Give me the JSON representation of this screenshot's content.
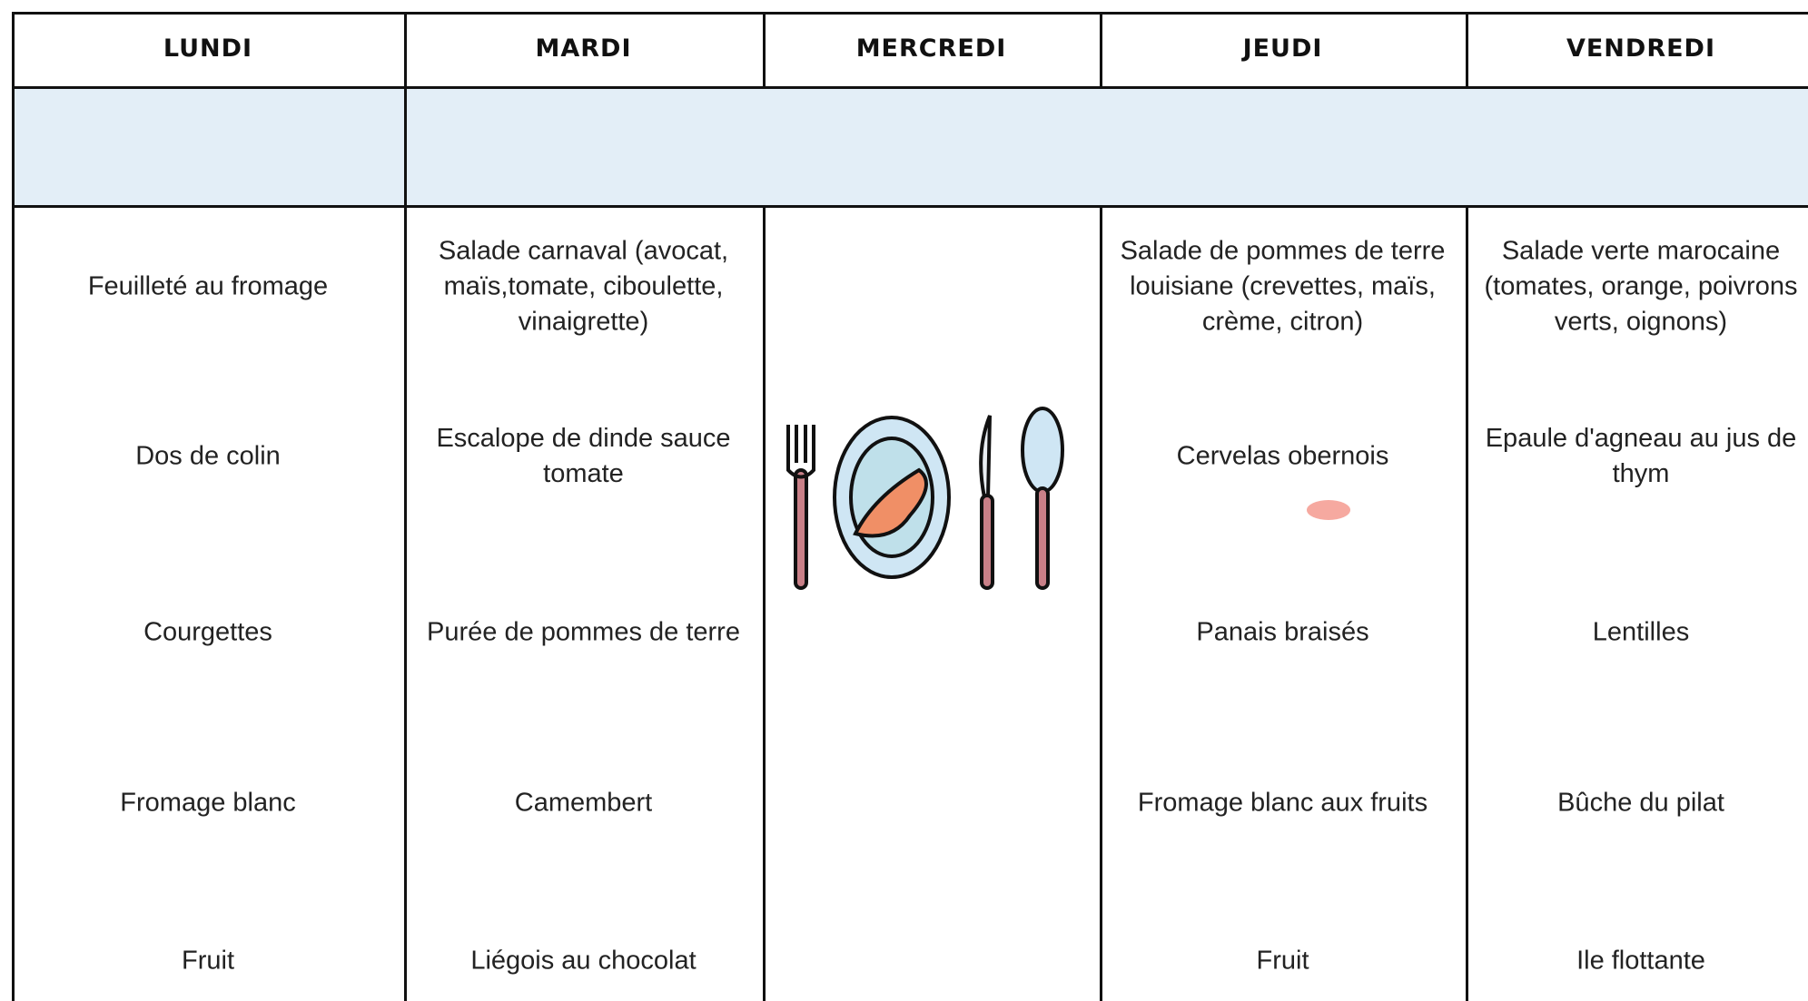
{
  "columns": [
    {
      "day": "LUNDI",
      "dishes": [
        "Feuilleté au fromage",
        "Dos de colin",
        "Courgettes",
        "Fromage blanc",
        "Fruit"
      ]
    },
    {
      "day": "MARDI",
      "dishes": [
        "Salade carnaval (avocat, maïs,tomate, ciboulette, vinaigrette)",
        "Escalope de dinde sauce tomate",
        "Purée de pommes de terre",
        "Camembert",
        "Liégois au chocolat"
      ]
    },
    {
      "day": "MERCREDI",
      "dishes": []
    },
    {
      "day": "JEUDI",
      "dishes": [
        "Salade de pommes de terre louisiane (crevettes, maïs, crème, citron)",
        "Cervelas obernois",
        "Panais braisés",
        "Fromage blanc aux fruits",
        "Fruit"
      ]
    },
    {
      "day": "VENDREDI",
      "dishes": [
        "Salade verte marocaine (tomates, orange, poivrons verts, oignons)",
        "Epaule d'agneau au jus de thym",
        "Lentilles",
        "Bûche du pilat",
        "Ile flottante"
      ]
    }
  ]
}
